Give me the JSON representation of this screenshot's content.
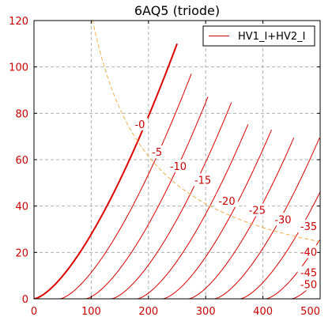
{
  "chart_data": {
    "type": "line",
    "title": "6AQ5 (triode)",
    "xlim": [
      0,
      500
    ],
    "ylim": [
      0,
      120
    ],
    "xticks": [
      0,
      100,
      200,
      300,
      400,
      500
    ],
    "yticks": [
      0,
      20,
      40,
      60,
      80,
      100,
      120
    ],
    "grid": true,
    "legend": {
      "position": "top-right",
      "entries": [
        "HV1_I+HV2_I"
      ]
    },
    "colors": {
      "curves": "#dd0000",
      "dissipation": "#f0b050",
      "grid": "#b0b0b0",
      "ticks": "#cc0000"
    },
    "series": [
      {
        "label": "-0",
        "grid_voltage": 0,
        "offset": 0,
        "end_x": 250
      },
      {
        "label": "-5",
        "grid_voltage": -5,
        "offset": 45,
        "end_x": 275
      },
      {
        "label": "-10",
        "grid_voltage": -10,
        "offset": 90,
        "end_x": 305
      },
      {
        "label": "-15",
        "grid_voltage": -15,
        "offset": 135,
        "end_x": 345
      },
      {
        "label": "-20",
        "grid_voltage": -20,
        "offset": 180,
        "end_x": 375
      },
      {
        "label": "-25",
        "grid_voltage": -25,
        "offset": 225,
        "end_x": 415
      },
      {
        "label": "-30",
        "grid_voltage": -30,
        "offset": 270,
        "end_x": 455
      },
      {
        "label": "-35",
        "grid_voltage": -35,
        "offset": 315,
        "end_x": 500
      },
      {
        "label": "-40",
        "grid_voltage": -40,
        "offset": 360,
        "end_x": 500
      },
      {
        "label": "-45",
        "grid_voltage": -45,
        "offset": 405,
        "end_x": 500
      },
      {
        "label": "-50",
        "grid_voltage": -50,
        "offset": 450,
        "end_x": 500
      }
    ],
    "label_positions": [
      {
        "label": "-0",
        "x": 185,
        "y": 75
      },
      {
        "label": "-5",
        "x": 215,
        "y": 63
      },
      {
        "label": "-10",
        "x": 252,
        "y": 57
      },
      {
        "label": "-15",
        "x": 295,
        "y": 51
      },
      {
        "label": "-20",
        "x": 337,
        "y": 42
      },
      {
        "label": "-25",
        "x": 390,
        "y": 38
      },
      {
        "label": "-30",
        "x": 435,
        "y": 34
      },
      {
        "label": "-35",
        "x": 480,
        "y": 31
      },
      {
        "label": "-40",
        "x": 480,
        "y": 20
      },
      {
        "label": "-45",
        "x": 480,
        "y": 11
      },
      {
        "label": "-50",
        "x": 480,
        "y": 6
      }
    ],
    "plate_dissipation_watts": 12.3
  }
}
